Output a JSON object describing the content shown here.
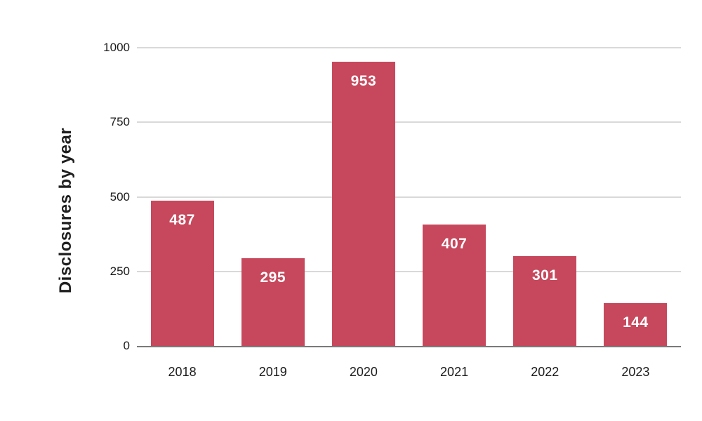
{
  "chart_data": {
    "type": "bar",
    "title": "",
    "xlabel": "",
    "ylabel": "Disclosures by year",
    "categories": [
      "2018",
      "2019",
      "2020",
      "2021",
      "2022",
      "2023"
    ],
    "values": [
      487,
      295,
      953,
      407,
      301,
      144
    ],
    "ylim": [
      0,
      1000
    ],
    "yticks": [
      0,
      250,
      500,
      750,
      1000
    ],
    "grid": true,
    "legend": "none",
    "colors": {
      "bar": "#C7485C",
      "value_label": "#FFFFFF",
      "axis_text": "#1B1B1B",
      "axis_title_text": "#1F1F1F",
      "gridline": "#D9D9D9",
      "baseline": "#7A7A7A",
      "background": "#FFFFFF"
    }
  }
}
